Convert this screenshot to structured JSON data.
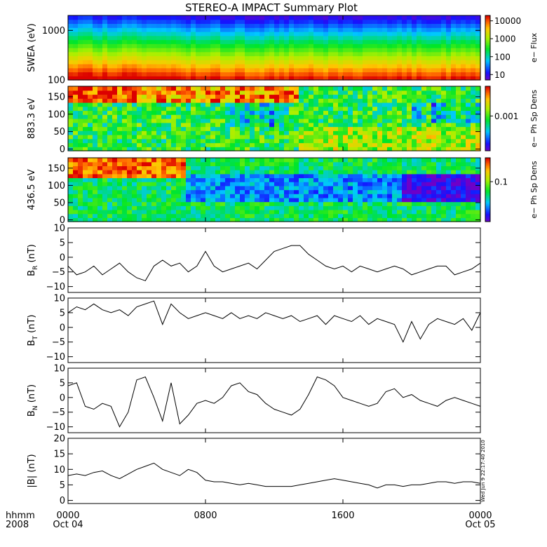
{
  "title": "STEREO-A IMPACT Summary Plot",
  "timestamp": "Wed Jun 9 22:17:40 2010",
  "time_axis": {
    "label_top": "hhmm",
    "label_bottom": "2008",
    "ticks": [
      {
        "hours": 0,
        "label": "0000",
        "sub": "Oct 04"
      },
      {
        "hours": 8,
        "label": "0800",
        "sub": ""
      },
      {
        "hours": 16,
        "label": "1600",
        "sub": ""
      },
      {
        "hours": 24,
        "label": "0000",
        "sub": "Oct 05"
      }
    ]
  },
  "panels": [
    {
      "id": "swea",
      "ylabel": "SWEA (eV)",
      "yscale": "log",
      "ylim": [
        100,
        2000
      ],
      "ticks": [
        {
          "v": 100,
          "label": "100"
        },
        {
          "v": 1000,
          "label": "1000"
        }
      ],
      "cbar": {
        "label": "e−  Flux",
        "scale": "log",
        "range": [
          5,
          20000
        ],
        "ticks": [
          {
            "v": 10,
            "label": "10"
          },
          {
            "v": 100,
            "label": "100"
          },
          {
            "v": 1000,
            "label": "1000"
          },
          {
            "v": 10000,
            "label": "10000"
          }
        ]
      }
    },
    {
      "id": "pad883",
      "ylabel": "883.3 eV",
      "yscale": "linear",
      "ylim": [
        -5,
        180
      ],
      "ticks": [
        {
          "v": 0,
          "label": "0"
        },
        {
          "v": 50,
          "label": "50"
        },
        {
          "v": 100,
          "label": "100"
        },
        {
          "v": 150,
          "label": "150"
        }
      ],
      "cbar": {
        "label": "e−  Ph Sp Dens",
        "scale": "log",
        "range": [
          3e-05,
          0.02
        ],
        "ticks": [
          {
            "v": 0.001,
            "label": "0.001"
          }
        ]
      }
    },
    {
      "id": "pad436",
      "ylabel": "436.5 eV",
      "yscale": "linear",
      "ylim": [
        -5,
        180
      ],
      "ticks": [
        {
          "v": 0,
          "label": "0"
        },
        {
          "v": 50,
          "label": "50"
        },
        {
          "v": 100,
          "label": "100"
        },
        {
          "v": 150,
          "label": "150"
        }
      ],
      "cbar": {
        "label": "e−  Ph Sp Dens",
        "scale": "log",
        "range": [
          0.005,
          0.6
        ],
        "ticks": [
          {
            "v": 0.1,
            "label": "0.1"
          }
        ]
      }
    },
    {
      "id": "br",
      "ylabel_main": "B",
      "ylabel_sub": "R",
      "ylabel_unit": " (nT)",
      "yscale": "linear",
      "ylim": [
        -12,
        10
      ],
      "ticks": [
        {
          "v": -10,
          "label": "−10"
        },
        {
          "v": -5,
          "label": "−5"
        },
        {
          "v": 0,
          "label": "0"
        },
        {
          "v": 5,
          "label": "5"
        },
        {
          "v": 10,
          "label": "10"
        }
      ]
    },
    {
      "id": "bt",
      "ylabel_main": "B",
      "ylabel_sub": "T",
      "ylabel_unit": " (nT)",
      "yscale": "linear",
      "ylim": [
        -12,
        10
      ],
      "ticks": [
        {
          "v": -10,
          "label": "−10"
        },
        {
          "v": -5,
          "label": "−5"
        },
        {
          "v": 0,
          "label": "0"
        },
        {
          "v": 5,
          "label": "5"
        },
        {
          "v": 10,
          "label": "10"
        }
      ]
    },
    {
      "id": "bn",
      "ylabel_main": "B",
      "ylabel_sub": "N",
      "ylabel_unit": " (nT)",
      "yscale": "linear",
      "ylim": [
        -12,
        10
      ],
      "ticks": [
        {
          "v": -10,
          "label": "−10"
        },
        {
          "v": -5,
          "label": "−5"
        },
        {
          "v": 0,
          "label": "0"
        },
        {
          "v": 5,
          "label": "5"
        },
        {
          "v": 10,
          "label": "10"
        }
      ]
    },
    {
      "id": "bmag",
      "ylabel_main": "|B|",
      "ylabel_sub": "",
      "ylabel_unit": " (nT)",
      "yscale": "linear",
      "ylim": [
        -1,
        20
      ],
      "ticks": [
        {
          "v": 0,
          "label": "0"
        },
        {
          "v": 5,
          "label": "5"
        },
        {
          "v": 10,
          "label": "10"
        },
        {
          "v": 15,
          "label": "15"
        },
        {
          "v": 20,
          "label": "20"
        }
      ]
    }
  ],
  "chart_data": {
    "type": "line",
    "title": "STEREO-A IMPACT Summary Plot",
    "x_unit": "hours since 2008-10-04 00:00",
    "xlim": [
      0,
      24
    ],
    "series": [
      {
        "name": "B_R",
        "x": [
          0,
          0.5,
          1,
          1.5,
          2,
          2.5,
          3,
          3.5,
          4,
          4.5,
          5,
          5.5,
          6,
          6.5,
          7,
          7.5,
          8,
          8.5,
          9,
          9.5,
          10,
          10.5,
          11,
          11.5,
          12,
          12.5,
          13,
          13.5,
          14,
          14.5,
          15,
          15.5,
          16,
          16.5,
          17,
          17.5,
          18,
          18.5,
          19,
          19.5,
          20,
          20.5,
          21,
          21.5,
          22,
          22.5,
          23,
          23.5,
          24
        ],
        "values": [
          -3,
          -6,
          -5,
          -3,
          -6,
          -4,
          -2,
          -5,
          -7,
          -8,
          -3,
          -1,
          -3,
          -2,
          -5,
          -3,
          2,
          -3,
          -5,
          -4,
          -3,
          -2,
          -4,
          -1,
          2,
          3,
          4,
          4,
          1,
          -1,
          -3,
          -4,
          -3,
          -5,
          -3,
          -4,
          -5,
          -4,
          -3,
          -4,
          -6,
          -5,
          -4,
          -3,
          -3,
          -6,
          -5,
          -4,
          -2
        ]
      },
      {
        "name": "B_T",
        "x": [
          0,
          0.5,
          1,
          1.5,
          2,
          2.5,
          3,
          3.5,
          4,
          4.5,
          5,
          5.5,
          6,
          6.5,
          7,
          7.5,
          8,
          8.5,
          9,
          9.5,
          10,
          10.5,
          11,
          11.5,
          12,
          12.5,
          13,
          13.5,
          14,
          14.5,
          15,
          15.5,
          16,
          16.5,
          17,
          17.5,
          18,
          18.5,
          19,
          19.5,
          20,
          20.5,
          21,
          21.5,
          22,
          22.5,
          23,
          23.5,
          24
        ],
        "values": [
          5,
          7,
          6,
          8,
          6,
          5,
          6,
          4,
          7,
          8,
          9,
          1,
          8,
          5,
          3,
          4,
          5,
          4,
          3,
          5,
          3,
          4,
          3,
          5,
          4,
          3,
          4,
          2,
          3,
          4,
          1,
          4,
          3,
          2,
          4,
          1,
          3,
          2,
          1,
          -5,
          2,
          -4,
          1,
          3,
          2,
          1,
          3,
          -1,
          5
        ]
      },
      {
        "name": "B_N",
        "x": [
          0,
          0.5,
          1,
          1.5,
          2,
          2.5,
          3,
          3.5,
          4,
          4.5,
          5,
          5.5,
          6,
          6.5,
          7,
          7.5,
          8,
          8.5,
          9,
          9.5,
          10,
          10.5,
          11,
          11.5,
          12,
          12.5,
          13,
          13.5,
          14,
          14.5,
          15,
          15.5,
          16,
          16.5,
          17,
          17.5,
          18,
          18.5,
          19,
          19.5,
          20,
          20.5,
          21,
          21.5,
          22,
          22.5,
          23,
          23.5,
          24
        ],
        "values": [
          4,
          5,
          -3,
          -4,
          -2,
          -3,
          -10,
          -5,
          6,
          7,
          0,
          -8,
          5,
          -9,
          -6,
          -2,
          -1,
          -2,
          0,
          4,
          5,
          2,
          1,
          -2,
          -4,
          -5,
          -6,
          -4,
          1,
          7,
          6,
          4,
          0,
          -1,
          -2,
          -3,
          -2,
          2,
          3,
          0,
          1,
          -1,
          -2,
          -3,
          -1,
          0,
          -1,
          -2,
          -3
        ]
      },
      {
        "name": "|B|",
        "x": [
          0,
          0.5,
          1,
          1.5,
          2,
          2.5,
          3,
          3.5,
          4,
          4.5,
          5,
          5.5,
          6,
          6.5,
          7,
          7.5,
          8,
          8.5,
          9,
          9.5,
          10,
          10.5,
          11,
          11.5,
          12,
          12.5,
          13,
          13.5,
          14,
          14.5,
          15,
          15.5,
          16,
          16.5,
          17,
          17.5,
          18,
          18.5,
          19,
          19.5,
          20,
          20.5,
          21,
          21.5,
          22,
          22.5,
          23,
          23.5,
          24
        ],
        "values": [
          8,
          8.5,
          8,
          9,
          9.5,
          8,
          7,
          8.5,
          10,
          11,
          12,
          10,
          9,
          8,
          10,
          9,
          6.5,
          6,
          6,
          5.5,
          5,
          5.5,
          5,
          4.5,
          4.5,
          4.5,
          4.5,
          5,
          5.5,
          6,
          6.5,
          7,
          6.5,
          6,
          5.5,
          5,
          4,
          5,
          5,
          4.5,
          5,
          5,
          5.5,
          6,
          6,
          5.5,
          6,
          6,
          5.5
        ]
      }
    ]
  },
  "colors": {
    "background": "#ffffff",
    "frame": "#000000",
    "trace": "#000000"
  }
}
